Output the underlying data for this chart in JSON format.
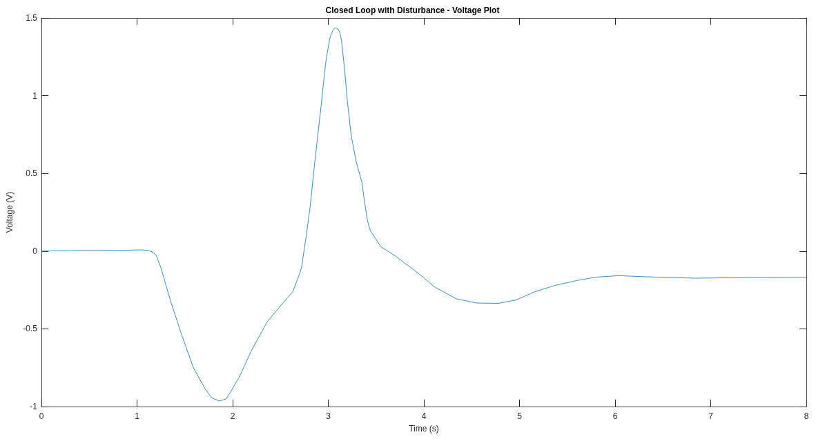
{
  "chart_data": {
    "type": "line",
    "title": "Closed Loop with Disturbance - Voltage Plot",
    "xlabel": "Time (s)",
    "ylabel": "Voltage (V)",
    "x": [
      0,
      0.3,
      0.6,
      0.9,
      1.05,
      1.12,
      1.16,
      1.2,
      1.25,
      1.35,
      1.47,
      1.59,
      1.71,
      1.78,
      1.86,
      1.93,
      1.97,
      2.07,
      2.19,
      2.36,
      2.5,
      2.63,
      2.7,
      2.72,
      2.77,
      2.81,
      2.86,
      2.92,
      2.96,
      2.98,
      3.02,
      3.05,
      3.07,
      3.1,
      3.12,
      3.14,
      3.17,
      3.2,
      3.24,
      3.29,
      3.35,
      3.38,
      3.41,
      3.44,
      3.55,
      3.63,
      3.7,
      3.79,
      3.9,
      3.99,
      4.11,
      4.34,
      4.55,
      4.78,
      4.96,
      5.16,
      5.37,
      5.6,
      5.81,
      6.04,
      6.31,
      6.84,
      7.42,
      8
    ],
    "values": [
      0,
      0.003,
      0.004,
      0.006,
      0.008,
      0.004,
      -0.005,
      -0.027,
      -0.108,
      -0.32,
      -0.544,
      -0.751,
      -0.884,
      -0.944,
      -0.964,
      -0.951,
      -0.914,
      -0.81,
      -0.648,
      -0.456,
      -0.352,
      -0.26,
      -0.145,
      -0.106,
      0.1,
      0.284,
      0.58,
      0.905,
      1.141,
      1.245,
      1.378,
      1.423,
      1.437,
      1.43,
      1.408,
      1.349,
      1.171,
      0.964,
      0.742,
      0.58,
      0.447,
      0.314,
      0.195,
      0.131,
      0.029,
      -0.004,
      -0.03,
      -0.073,
      -0.123,
      -0.167,
      -0.23,
      -0.307,
      -0.334,
      -0.336,
      -0.315,
      -0.261,
      -0.221,
      -0.189,
      -0.167,
      -0.158,
      -0.165,
      -0.174,
      -0.17,
      -0.169
    ],
    "color": "#3a8cc4",
    "line_style": "solid",
    "xlim": [
      0,
      8
    ],
    "xticks": [
      0,
      1,
      2,
      3,
      4,
      5,
      6,
      7,
      8
    ],
    "ylim": [
      -1,
      1.5
    ],
    "yticks": [
      -1,
      -0.5,
      0,
      0.5,
      1,
      1.5
    ]
  }
}
